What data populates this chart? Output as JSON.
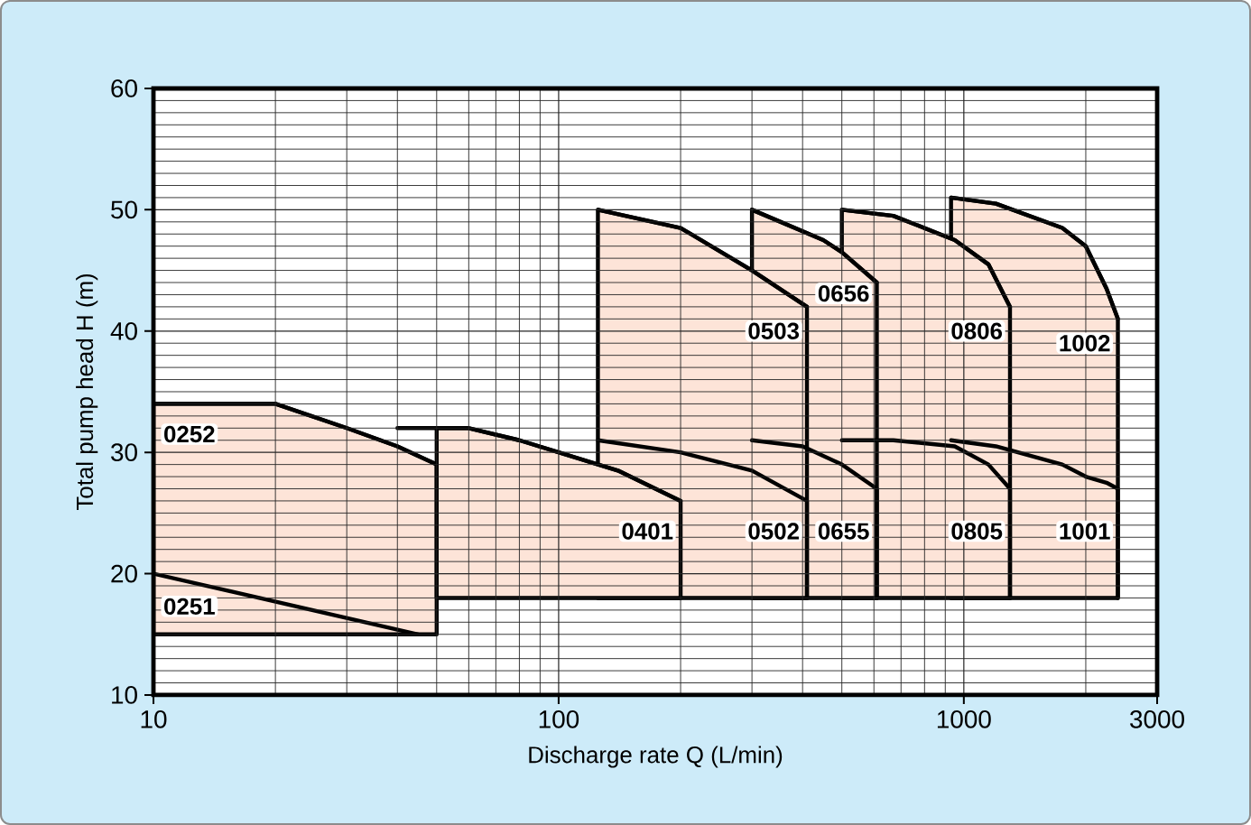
{
  "chart_data": {
    "type": "line",
    "xlabel": "Discharge rate Q (L/min)",
    "ylabel": "Total pump head H (m)",
    "log": "x",
    "grid": true,
    "xlim": [
      10,
      3000
    ],
    "ylim": [
      10,
      60
    ],
    "xticks": [
      10,
      100,
      1000,
      3000
    ],
    "yticks": [
      10,
      20,
      30,
      40,
      50,
      60
    ],
    "series": [
      {
        "name": "0251",
        "color": "#000000",
        "x": [
          10,
          45
        ],
        "values": [
          20,
          15
        ]
      },
      {
        "name": "0252",
        "color": "#000000",
        "x": [
          10,
          20,
          30,
          40,
          50
        ],
        "values": [
          34,
          34,
          32,
          30.5,
          29
        ],
        "lower": [
          15,
          15,
          15,
          15,
          15
        ],
        "upper": [
          34,
          34,
          32,
          30.5,
          29
        ]
      },
      {
        "name": "0401",
        "color": "#000000",
        "x": [
          40,
          50,
          60,
          80,
          100,
          140,
          200
        ],
        "values": [
          32,
          32,
          32,
          31,
          30,
          28.5,
          26
        ],
        "lower": [
          null,
          18,
          18,
          18,
          18,
          18,
          18
        ],
        "upper": [
          null,
          32,
          32,
          31,
          30,
          28.5,
          26
        ]
      },
      {
        "name": "0502",
        "color": "#000000",
        "x": [
          125,
          200,
          300,
          410,
          410
        ],
        "values": [
          31,
          30,
          28.5,
          26,
          18
        ]
      },
      {
        "name": "0503",
        "color": "#000000",
        "x": [
          125,
          200,
          300,
          410
        ],
        "values": [
          50,
          48.5,
          45,
          42
        ],
        "lower": [
          18,
          18,
          18,
          18
        ],
        "upper": [
          50,
          48.5,
          45,
          42
        ]
      },
      {
        "name": "0655",
        "color": "#000000",
        "x": [
          300,
          400,
          500,
          610,
          610
        ],
        "values": [
          31,
          30.5,
          29,
          27,
          18
        ]
      },
      {
        "name": "0656",
        "color": "#000000",
        "x": [
          300,
          450,
          500,
          610
        ],
        "values": [
          50,
          47.5,
          46.5,
          44
        ],
        "lower": [
          18,
          18,
          18,
          18
        ],
        "upper": [
          50,
          47.5,
          46.5,
          44
        ]
      },
      {
        "name": "0805",
        "color": "#000000",
        "x": [
          500,
          670,
          950,
          1150,
          1300,
          1300
        ],
        "values": [
          31,
          31,
          30.5,
          29,
          27,
          18
        ]
      },
      {
        "name": "0806",
        "color": "#000000",
        "x": [
          500,
          670,
          950,
          1150,
          1300
        ],
        "values": [
          50,
          49.5,
          47.5,
          45.5,
          42
        ],
        "lower": [
          18,
          18,
          18,
          18,
          18
        ],
        "upper": [
          50,
          49.5,
          47.5,
          45.5,
          42
        ]
      },
      {
        "name": "1001",
        "color": "#000000",
        "x": [
          930,
          1200,
          1750,
          2000,
          2250,
          2400,
          2400
        ],
        "values": [
          31,
          30.5,
          29,
          28,
          27.5,
          27,
          18
        ]
      },
      {
        "name": "1002",
        "color": "#000000",
        "x": [
          930,
          1200,
          1750,
          2000,
          2250,
          2400
        ],
        "values": [
          51,
          50.5,
          48.5,
          47,
          43.5,
          41
        ],
        "lower": [
          18,
          18,
          18,
          18,
          18,
          18
        ],
        "upper": [
          51,
          50.5,
          48.5,
          47,
          43.5,
          41
        ]
      }
    ]
  }
}
